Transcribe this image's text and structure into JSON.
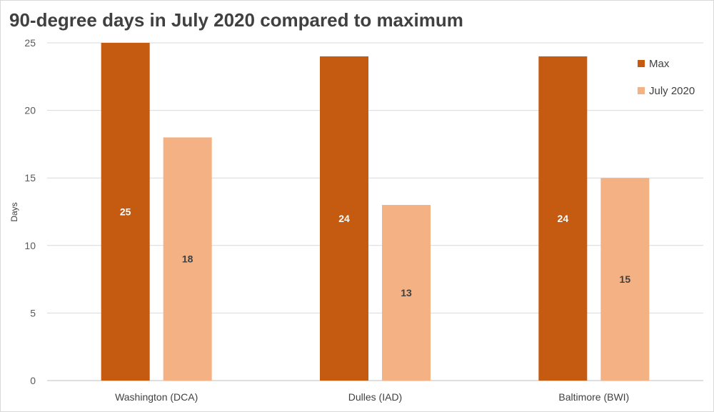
{
  "chart_data": {
    "type": "bar",
    "title": "90-degree days in July 2020 compared to maximum",
    "xlabel": "",
    "ylabel": "Days",
    "ylim": [
      0,
      25
    ],
    "yticks": [
      0,
      5,
      10,
      15,
      20,
      25
    ],
    "grid": true,
    "legend_position": "top-right",
    "categories": [
      "Washington (DCA)",
      "Dulles (IAD)",
      "Baltimore (BWI)"
    ],
    "series": [
      {
        "name": "Max",
        "values": [
          25,
          24,
          24
        ],
        "color": "#c55a11",
        "label_color": "#ffffff"
      },
      {
        "name": "July 2020",
        "values": [
          18,
          13,
          15
        ],
        "color": "#f4b183",
        "label_color": "#404040"
      }
    ]
  }
}
